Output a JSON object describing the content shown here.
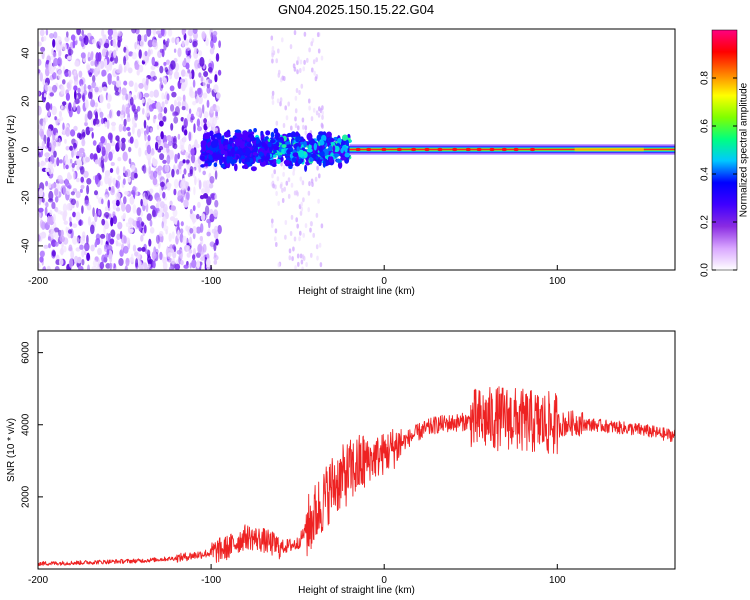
{
  "page": {
    "title": "GN04.2025.150.15.22.G04"
  },
  "chart_data": [
    {
      "type": "heatmap",
      "title": "GN04.2025.150.15.22.G04",
      "xlabel": "Height of straight line (km)",
      "ylabel": "Frequency (Hz)",
      "xlim": [
        -200,
        168
      ],
      "ylim": [
        -50,
        50
      ],
      "xticks": [
        -200,
        -100,
        0,
        100
      ],
      "yticks": [
        -40,
        -20,
        0,
        20,
        40
      ],
      "colorbar": {
        "label": "Normalized spectral amplitude",
        "range": [
          0,
          1
        ],
        "ticks": [
          0.0,
          0.2,
          0.4,
          0.6,
          0.8
        ],
        "colors": [
          "#ffffff",
          "#d9a6ff",
          "#8a2be2",
          "#3f00ff",
          "#0000ff",
          "#00c8ff",
          "#00ff80",
          "#80ff00",
          "#ffff00",
          "#ff8000",
          "#ff0000",
          "#ff0080"
        ]
      },
      "features": [
        {
          "name": "diffuse noise",
          "x_range": [
            -200,
            -100
          ],
          "freq_range": [
            -50,
            50
          ],
          "amplitude": 0.15
        },
        {
          "name": "transition cluster",
          "x_range": [
            -105,
            -20
          ],
          "freq_range": [
            -12,
            12
          ],
          "amplitude": 0.35
        },
        {
          "name": "carrier line",
          "x_range": [
            -20,
            168
          ],
          "freq_center": 0,
          "amplitude": 0.9
        }
      ]
    },
    {
      "type": "line",
      "xlabel": "Height of straight line (km)",
      "ylabel": "SNR (10 * v/v)",
      "xlim": [
        -200,
        168
      ],
      "ylim": [
        0,
        6600
      ],
      "xticks": [
        -200,
        -100,
        0,
        100
      ],
      "yticks": [
        2000,
        4000,
        6000
      ],
      "series": [
        {
          "name": "SNR",
          "color": "#ee2222",
          "x": [
            -200,
            -180,
            -160,
            -140,
            -120,
            -100,
            -90,
            -80,
            -70,
            -60,
            -50,
            -40,
            -30,
            -20,
            -10,
            0,
            10,
            20,
            30,
            40,
            50,
            60,
            70,
            80,
            90,
            100,
            110,
            120,
            130,
            140,
            150,
            160,
            168
          ],
          "values": [
            150,
            170,
            200,
            230,
            300,
            450,
            600,
            900,
            800,
            600,
            700,
            1500,
            2300,
            2700,
            3000,
            3200,
            3500,
            3800,
            4000,
            4050,
            4100,
            4150,
            4200,
            4100,
            4050,
            4000,
            4050,
            4000,
            3950,
            3900,
            3850,
            3750,
            3700
          ]
        }
      ]
    }
  ]
}
